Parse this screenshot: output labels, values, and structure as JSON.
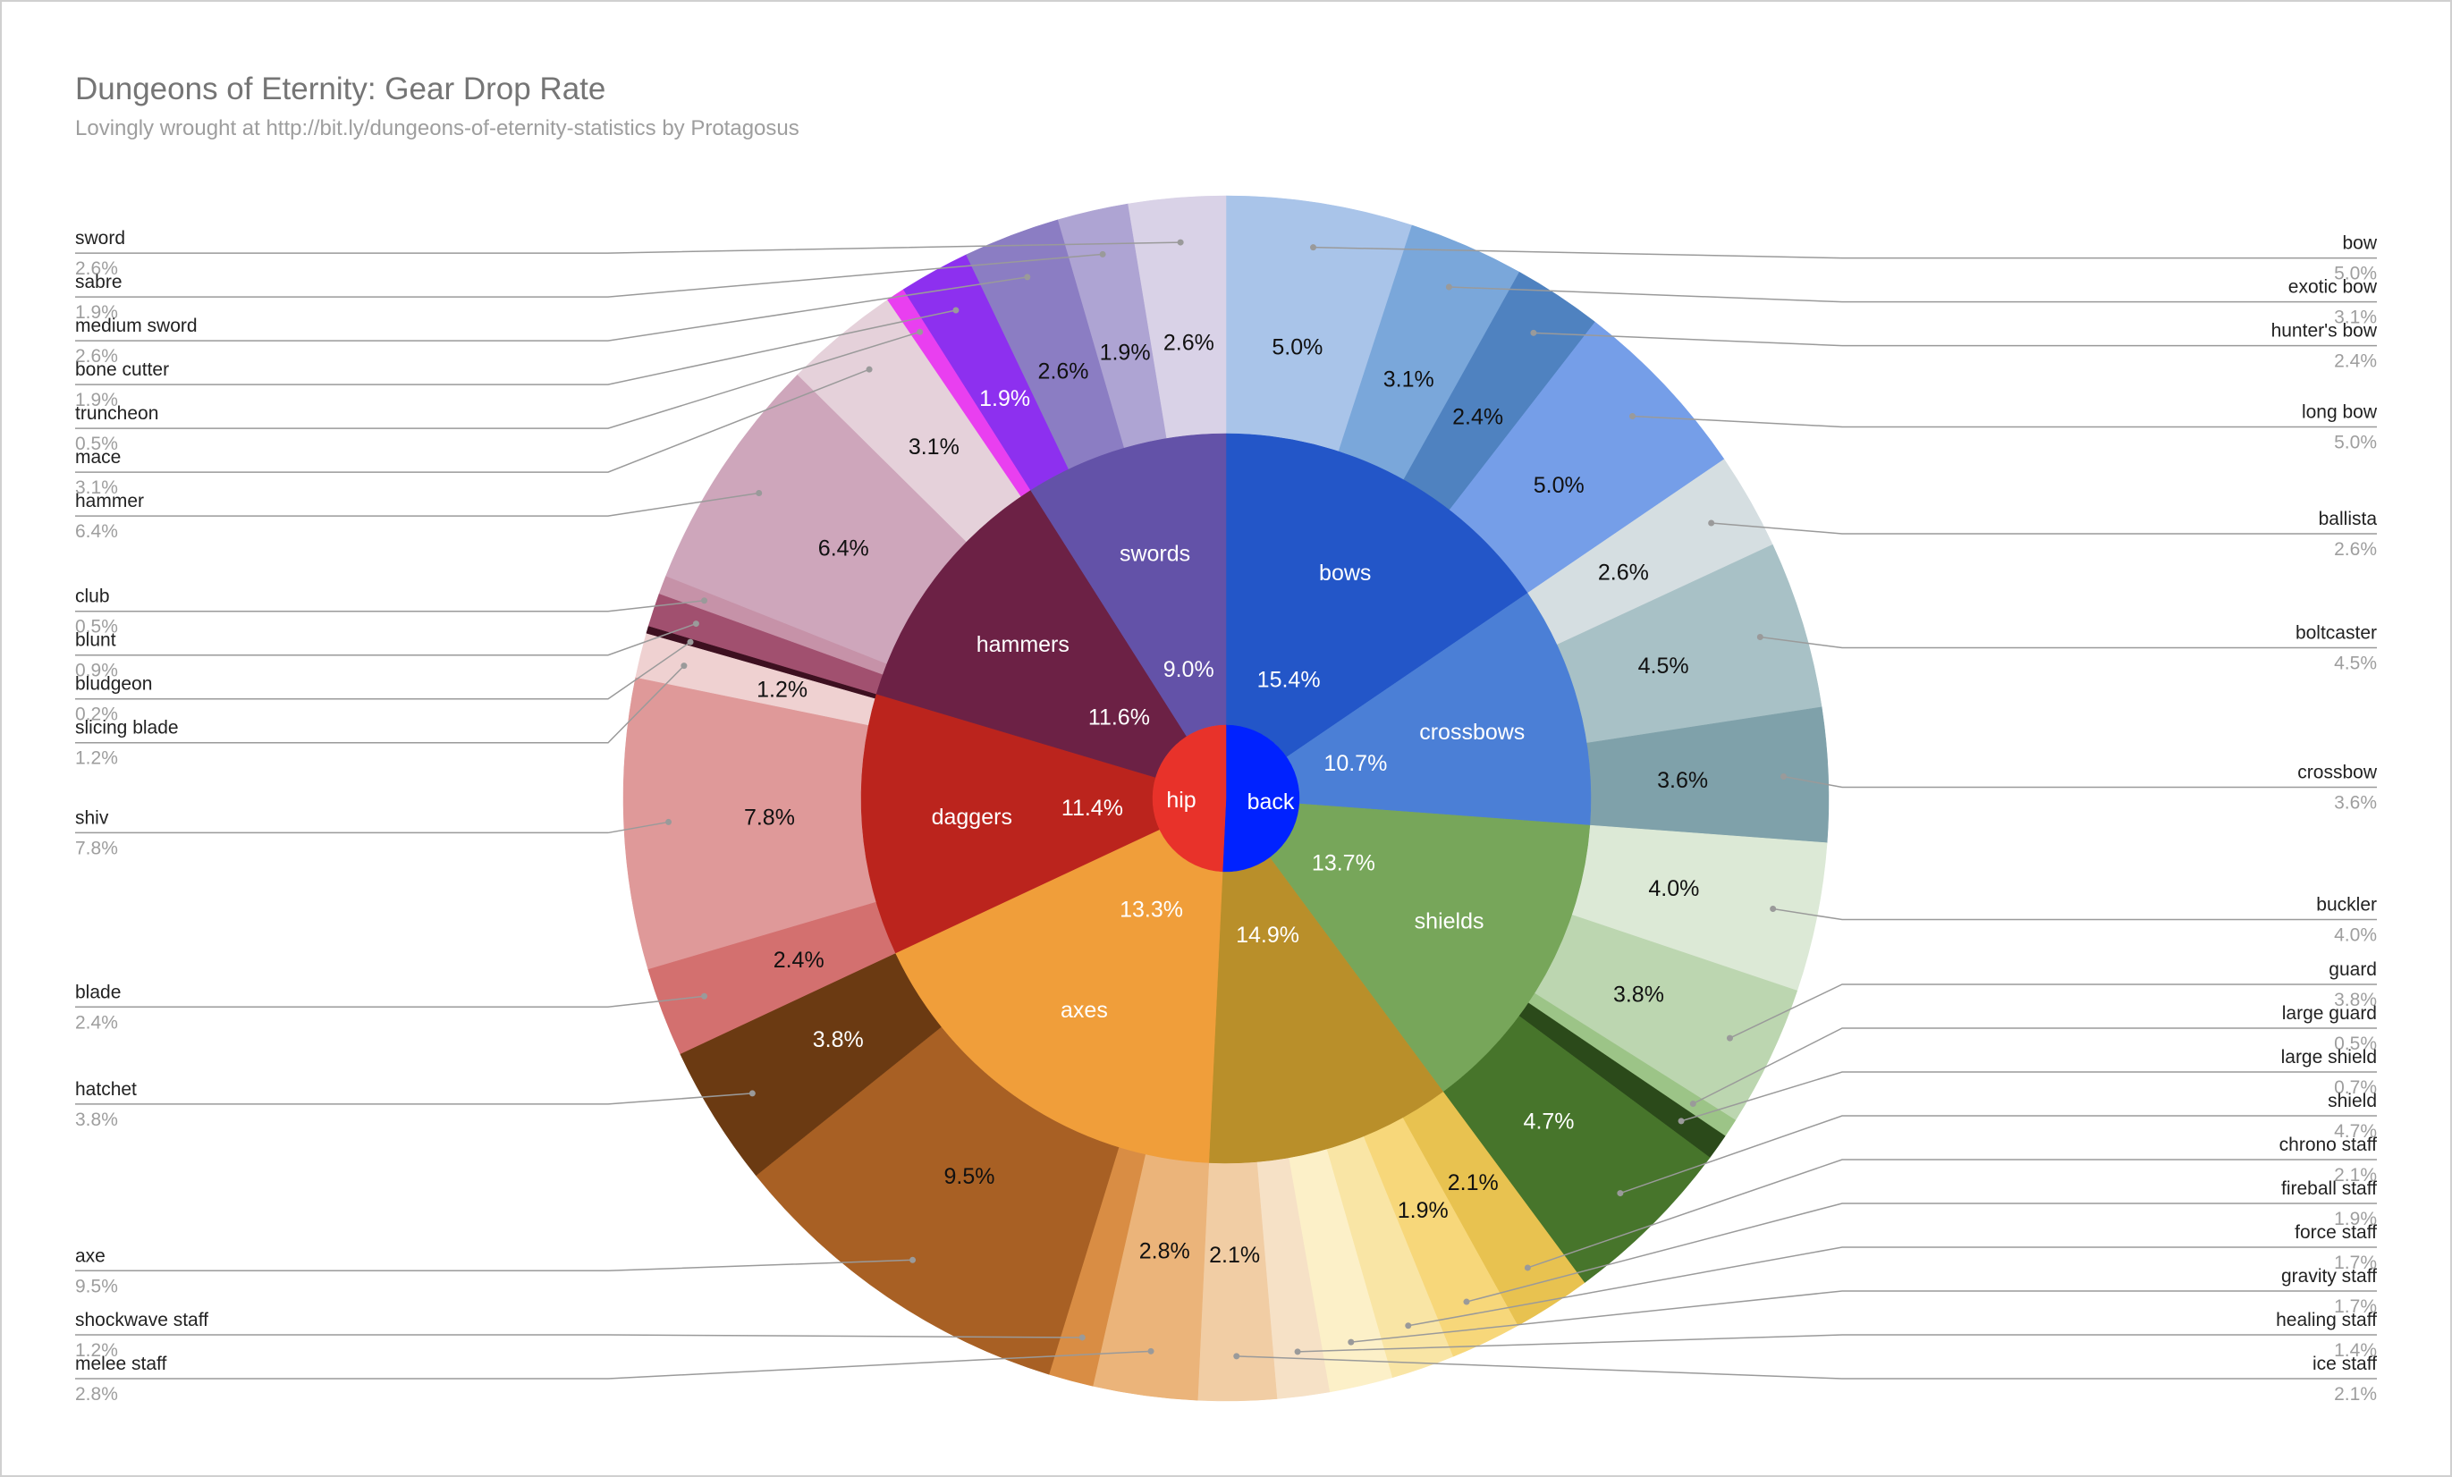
{
  "chart_data": {
    "type": "pie",
    "subtype": "sunburst",
    "title": "Dungeons of Eternity: Gear Drop Rate",
    "subtitle": "Lovingly wrought at http://bit.ly/dungeons-of-eternity-statistics by Protagosus",
    "slots": [
      {
        "name": "back",
        "color": "#0022ff"
      },
      {
        "name": "hip",
        "color": "#e8322a"
      }
    ],
    "categories": [
      {
        "name": "bows",
        "slot": "back",
        "pct": "15.4%",
        "color": "#2356c8"
      },
      {
        "name": "crossbows",
        "slot": "back",
        "pct": "10.7%",
        "color": "#4b7fd6"
      },
      {
        "name": "shields",
        "slot": "back",
        "pct": "13.7%",
        "color": "#77a65a"
      },
      {
        "name": "",
        "slot": "back",
        "pct": "14.9%",
        "color": "#b98f2a"
      },
      {
        "name": "axes",
        "slot": "hip",
        "pct": "13.3%",
        "color": "#f09e3a"
      },
      {
        "name": "daggers",
        "slot": "hip",
        "pct": "11.4%",
        "color": "#bb241d"
      },
      {
        "name": "hammers",
        "slot": "hip",
        "pct": "11.6%",
        "color": "#6c2145"
      },
      {
        "name": "swords",
        "slot": "hip",
        "pct": "9.0%",
        "color": "#6352a8"
      }
    ],
    "items": [
      {
        "name": "bow",
        "pct": "5.0%",
        "value": 5.0,
        "color": "#a9c4e9",
        "side": "right",
        "show_inside": true
      },
      {
        "name": "exotic bow",
        "pct": "3.1%",
        "value": 3.1,
        "color": "#7aa7da",
        "side": "right",
        "show_inside": true
      },
      {
        "name": "hunter's bow",
        "pct": "2.4%",
        "value": 2.4,
        "color": "#4f82c0",
        "side": "right",
        "show_inside": true
      },
      {
        "name": "long bow",
        "pct": "5.0%",
        "value": 5.0,
        "color": "#759ee8",
        "side": "right",
        "show_inside": true
      },
      {
        "name": "ballista",
        "pct": "2.6%",
        "value": 2.6,
        "color": "#d5dee1",
        "side": "right",
        "show_inside": true
      },
      {
        "name": "boltcaster",
        "pct": "4.5%",
        "value": 4.5,
        "color": "#a8c1c6",
        "side": "right",
        "show_inside": true
      },
      {
        "name": "crossbow",
        "pct": "3.6%",
        "value": 3.6,
        "color": "#7fa1aa",
        "side": "right",
        "show_inside": true
      },
      {
        "name": "buckler",
        "pct": "4.0%",
        "value": 4.0,
        "color": "#dce9d6",
        "side": "right",
        "show_inside": true
      },
      {
        "name": "guard",
        "pct": "3.8%",
        "value": 3.8,
        "color": "#bcd6b0",
        "side": "right",
        "show_inside": true
      },
      {
        "name": "large guard",
        "pct": "0.5%",
        "value": 0.5,
        "color": "#9cc487",
        "side": "right",
        "show_inside": false
      },
      {
        "name": "large shield",
        "pct": "0.7%",
        "value": 0.7,
        "color": "#2b4a1a",
        "side": "right",
        "show_inside": false
      },
      {
        "name": "shield",
        "pct": "4.7%",
        "value": 4.7,
        "color": "#47752b",
        "side": "right",
        "show_inside": true
      },
      {
        "name": "chrono staff",
        "pct": "2.1%",
        "value": 2.1,
        "color": "#e8c250",
        "side": "right",
        "show_inside": true
      },
      {
        "name": "fireball staff",
        "pct": "1.9%",
        "value": 1.9,
        "color": "#f7d77a",
        "side": "right",
        "show_inside": true
      },
      {
        "name": "force staff",
        "pct": "1.7%",
        "value": 1.7,
        "color": "#f9e5a5",
        "side": "right",
        "show_inside": false
      },
      {
        "name": "gravity staff",
        "pct": "1.7%",
        "value": 1.7,
        "color": "#fcf0c8",
        "side": "right",
        "show_inside": false
      },
      {
        "name": "healing staff",
        "pct": "1.4%",
        "value": 1.4,
        "color": "#f6e1c6",
        "side": "right",
        "show_inside": false
      },
      {
        "name": "ice staff",
        "pct": "2.1%",
        "value": 2.1,
        "color": "#f1cda4",
        "side": "right",
        "show_inside": true
      },
      {
        "name": "melee staff",
        "pct": "2.8%",
        "value": 2.8,
        "color": "#ebb47a",
        "side": "left",
        "show_inside": true
      },
      {
        "name": "shockwave staff",
        "pct": "1.2%",
        "value": 1.2,
        "color": "#d98d44",
        "side": "left",
        "show_inside": false
      },
      {
        "name": "axe",
        "pct": "9.5%",
        "value": 9.5,
        "color": "#a86024",
        "side": "left",
        "show_inside": true
      },
      {
        "name": "hatchet",
        "pct": "3.8%",
        "value": 3.8,
        "color": "#6b3a12",
        "side": "left",
        "show_inside": true
      },
      {
        "name": "blade",
        "pct": "2.4%",
        "value": 2.4,
        "color": "#d3706f",
        "side": "left",
        "show_inside": true
      },
      {
        "name": "shiv",
        "pct": "7.8%",
        "value": 7.8,
        "color": "#df9999",
        "side": "left",
        "show_inside": true
      },
      {
        "name": "slicing blade",
        "pct": "1.2%",
        "value": 1.2,
        "color": "#efd1d1",
        "side": "left",
        "show_inside": true
      },
      {
        "name": "bludgeon",
        "pct": "0.2%",
        "value": 0.2,
        "color": "#3d1020",
        "side": "left",
        "show_inside": false
      },
      {
        "name": "blunt",
        "pct": "0.9%",
        "value": 0.9,
        "color": "#a1506f",
        "side": "left",
        "show_inside": false
      },
      {
        "name": "club",
        "pct": "0.5%",
        "value": 0.5,
        "color": "#c692a8",
        "side": "left",
        "show_inside": false
      },
      {
        "name": "hammer",
        "pct": "6.4%",
        "value": 6.4,
        "color": "#cea6bb",
        "side": "left",
        "show_inside": true
      },
      {
        "name": "mace",
        "pct": "3.1%",
        "value": 3.1,
        "color": "#e5d1da",
        "side": "left",
        "show_inside": true
      },
      {
        "name": "truncheon",
        "pct": "0.5%",
        "value": 0.5,
        "color": "#e93ff0",
        "side": "left",
        "show_inside": false
      },
      {
        "name": "bone cutter",
        "pct": "1.9%",
        "value": 1.9,
        "color": "#8d30ef",
        "side": "left",
        "show_inside": true
      },
      {
        "name": "medium sword",
        "pct": "2.6%",
        "value": 2.6,
        "color": "#8b7dc3",
        "side": "left",
        "show_inside": true
      },
      {
        "name": "sabre",
        "pct": "1.9%",
        "value": 1.9,
        "color": "#aea4d3",
        "side": "left",
        "show_inside": true
      },
      {
        "name": "sword",
        "pct": "2.6%",
        "value": 2.6,
        "color": "#d9d2e7",
        "side": "left",
        "show_inside": true
      }
    ],
    "legend": "none"
  }
}
